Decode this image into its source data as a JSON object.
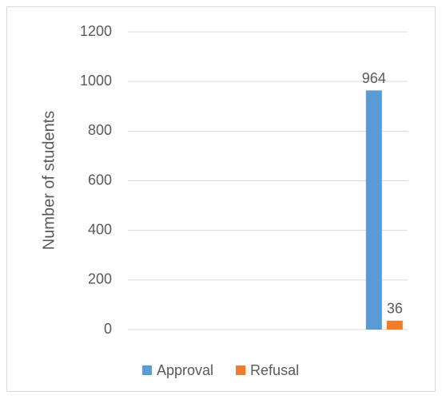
{
  "chart_data": {
    "type": "bar",
    "categories": [
      null,
      null,
      null,
      null,
      null,
      null
    ],
    "series": [
      {
        "name": "Approval",
        "color": "#5b9bd5",
        "values": [
          null,
          null,
          null,
          null,
          null,
          964
        ]
      },
      {
        "name": "Refusal",
        "color": "#ed7d31",
        "values": [
          null,
          null,
          null,
          null,
          null,
          36
        ]
      }
    ],
    "ylabel": "Number of students",
    "ylim": [
      0,
      1200
    ],
    "yticks": [
      0,
      200,
      400,
      600,
      800,
      1000,
      1200
    ],
    "grid": true,
    "legend": "bottom",
    "data_labels": true
  }
}
